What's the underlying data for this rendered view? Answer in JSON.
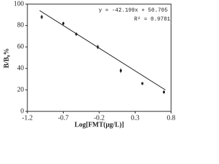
{
  "chart_data": {
    "type": "scatter",
    "x_label": "Log[FMT(μg/L)]",
    "y_label": "B/B₀%",
    "annotations": [
      "y = -42.199x + 50.705",
      "R² = 0.9781"
    ],
    "x": [
      -1.0,
      -0.7,
      -0.52,
      -0.22,
      0.1,
      0.4,
      0.7
    ],
    "series": [
      {
        "name": "B/B0",
        "color": "#222222",
        "values": [
          88,
          82,
          72,
          60,
          38,
          26,
          18
        ],
        "errors": [
          2,
          1.5,
          1.5,
          2,
          2,
          1.5,
          1.5
        ]
      }
    ],
    "trendline": {
      "x": [
        -1.03,
        0.72
      ],
      "values": [
        94,
        20
      ],
      "color": "#222222"
    },
    "xlim": [
      -1.2,
      0.8
    ],
    "xticks": [
      -1.2,
      -0.7,
      -0.2,
      0.3,
      0.8
    ],
    "ylim": [
      0,
      100
    ],
    "yticks": [
      0,
      20,
      40,
      60,
      80,
      100
    ]
  }
}
